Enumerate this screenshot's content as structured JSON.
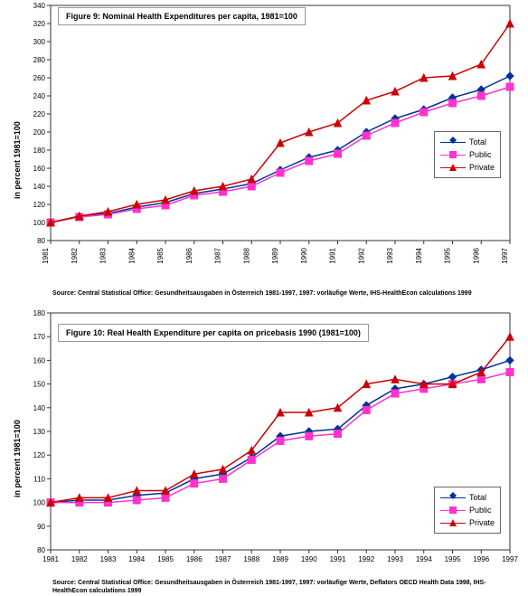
{
  "colors": {
    "total": "#003399",
    "public": "#ff33cc",
    "private": "#cc0000",
    "axis": "#333333",
    "bg": "#ffffff"
  },
  "legend": [
    {
      "label": "Total",
      "key": "total",
      "marker": "diamond"
    },
    {
      "label": "Public",
      "key": "public",
      "marker": "square"
    },
    {
      "label": "Private",
      "key": "private",
      "marker": "triangle"
    }
  ],
  "chart1": {
    "title": "Figure 9: Nominal Health Expenditures per capita, 1981=100",
    "ylabel": "in percent 1981=100",
    "source": "Source: Central Statistical Office: Gesundheitsausgaben in Österreich 1981-1997, 1997: vorläufige Werte, IHS-HealthEcon calculations 1999",
    "ymin": 80,
    "ymax": 340,
    "ystep": 20,
    "years": [
      1981,
      1982,
      1983,
      1984,
      1985,
      1986,
      1987,
      1988,
      1989,
      1990,
      1991,
      1992,
      1993,
      1994,
      1995,
      1996,
      1997
    ],
    "series": {
      "total": [
        100,
        107,
        110,
        117,
        122,
        132,
        137,
        143,
        158,
        172,
        180,
        200,
        215,
        225,
        238,
        247,
        262
      ],
      "public": [
        100,
        106,
        109,
        115,
        119,
        130,
        134,
        140,
        155,
        168,
        176,
        196,
        210,
        222,
        232,
        240,
        250
      ],
      "private": [
        100,
        107,
        112,
        120,
        125,
        135,
        140,
        148,
        188,
        200,
        210,
        235,
        245,
        260,
        262,
        275,
        320
      ]
    },
    "line_width": 1.5,
    "marker_size": 4,
    "xtick_rotate": -90
  },
  "chart2": {
    "title": "Figure 10: Real Health Expenditure per capita on pricebasis 1990 (1981=100)",
    "ylabel": "in percent 1981=100",
    "source": "Source: Central Statistical Office: Gesundheitsausgaben in Österreich 1981-1997, 1997: vorläufige Werte, Deflators OECD Health Data 1998, IHS-HealthEcon calculations 1999",
    "ymin": 80,
    "ymax": 180,
    "ystep": 10,
    "years": [
      1981,
      1982,
      1983,
      1984,
      1985,
      1986,
      1987,
      1988,
      1989,
      1990,
      1991,
      1992,
      1993,
      1994,
      1995,
      1996,
      1997
    ],
    "series": {
      "total": [
        100,
        101,
        101,
        103,
        104,
        110,
        112,
        119,
        128,
        130,
        131,
        141,
        148,
        150,
        153,
        156,
        160
      ],
      "public": [
        100,
        100,
        100,
        101,
        102,
        108,
        110,
        118,
        126,
        128,
        129,
        139,
        146,
        148,
        150,
        152,
        155
      ],
      "private": [
        100,
        102,
        102,
        105,
        105,
        112,
        114,
        122,
        138,
        138,
        140,
        150,
        152,
        150,
        150,
        155,
        170
      ]
    },
    "line_width": 1.5,
    "marker_size": 4,
    "xtick_rotate": 0
  }
}
